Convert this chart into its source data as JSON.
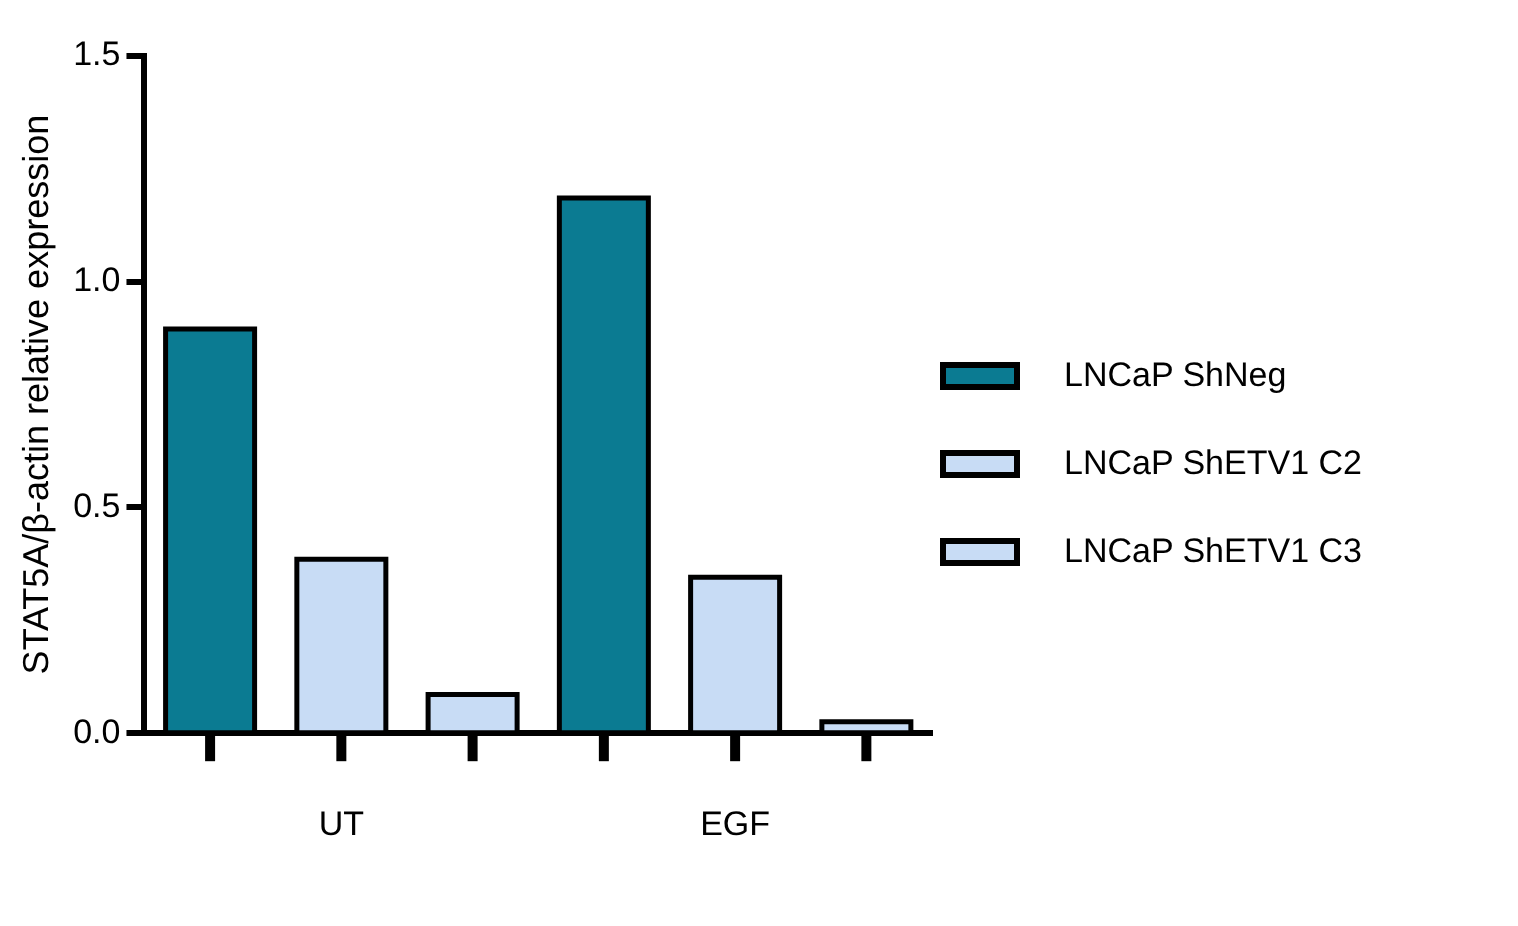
{
  "chart_data": {
    "type": "bar",
    "ylabel": "STAT5A/β-actin relative expression",
    "categories": [
      "UT",
      "EGF"
    ],
    "series": [
      {
        "name": "LNCaP ShNeg",
        "color": "#0b7b92",
        "values": [
          0.89,
          1.18
        ]
      },
      {
        "name": "LNCaP ShETV1 C2",
        "color": "#c8dcf5",
        "values": [
          0.38,
          0.34
        ]
      },
      {
        "name": "LNCaP ShETV1 C3",
        "color": "#c8dcf5",
        "values": [
          0.08,
          0.02
        ]
      }
    ],
    "ylim": [
      0,
      1.5
    ],
    "yticks": [
      {
        "value": 0,
        "label": "0.0"
      },
      {
        "value": 0.5,
        "label": "0.5"
      },
      {
        "value": 1,
        "label": "1.0"
      },
      {
        "value": 1.5,
        "label": "1.5"
      }
    ],
    "grid": false,
    "legend": "right"
  }
}
